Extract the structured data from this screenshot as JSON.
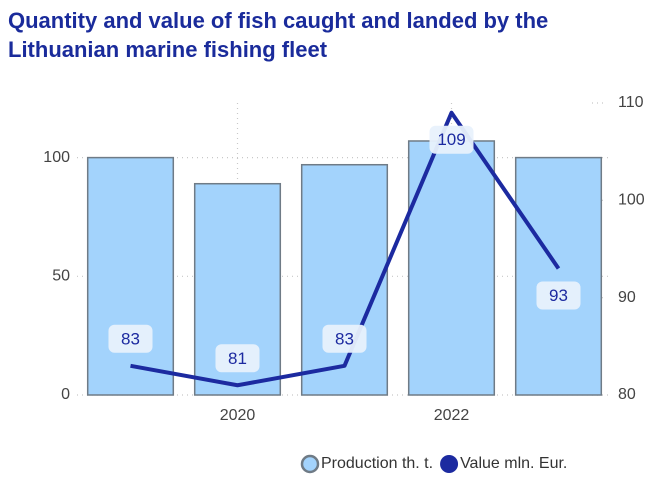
{
  "chart_data": {
    "type": "bar_line",
    "title": "Quantity and value of fish caught and landed by the Lithuanian marine fishing fleet",
    "categories": [
      null,
      "2020",
      null,
      "2022",
      null
    ],
    "series": [
      {
        "name": "Production th. t.",
        "type": "bar",
        "color": "#a3d3fc",
        "values": [
          100,
          89,
          97,
          107,
          100
        ]
      },
      {
        "name": "Value mln. Eur.",
        "type": "line",
        "axis": "y2",
        "color": "#1c2aa0",
        "values": [
          83,
          81,
          83,
          109,
          93
        ]
      }
    ],
    "ylim": [
      0,
      123
    ],
    "yticks": [
      0,
      50,
      100
    ],
    "y2lim": [
      80,
      110
    ],
    "y2ticks": [
      80,
      90,
      100,
      110
    ],
    "grid": true,
    "legend": "bottom-right"
  }
}
